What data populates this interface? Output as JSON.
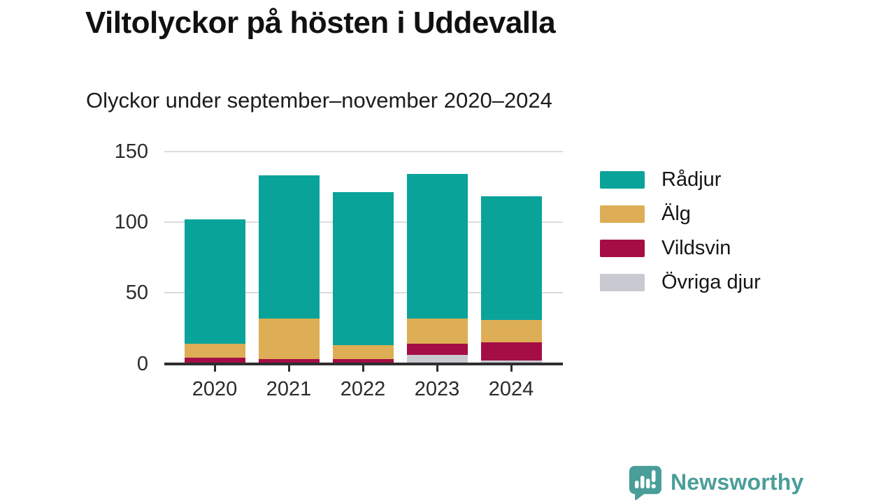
{
  "title": "Viltolyckor på hösten i Uddevalla",
  "subtitle": "Olyckor under september–november 2020–2024",
  "chart_data": {
    "type": "bar",
    "stacked": true,
    "title": "Viltolyckor på hösten i Uddevalla",
    "subtitle": "Olyckor under september–november 2020–2024",
    "categories": [
      "2020",
      "2021",
      "2022",
      "2023",
      "2024"
    ],
    "series": [
      {
        "name": "Rådjur",
        "color": "#09a39a",
        "values": [
          88,
          101,
          108,
          102,
          87
        ]
      },
      {
        "name": "Älg",
        "color": "#ddae55",
        "values": [
          10,
          29,
          10,
          18,
          16
        ]
      },
      {
        "name": "Vildsvin",
        "color": "#a50d45",
        "values": [
          4,
          3,
          3,
          8,
          13
        ]
      },
      {
        "name": "Övriga djur",
        "color": "#c9c9d2",
        "values": [
          0,
          0,
          0,
          6,
          2
        ]
      }
    ],
    "totals": [
      102,
      133,
      121,
      134,
      118
    ],
    "stack_order_bottom_to_top": [
      "Övriga djur",
      "Vildsvin",
      "Älg",
      "Rådjur"
    ],
    "xlabel": "",
    "ylabel": "",
    "ylim": [
      0,
      150
    ],
    "yticks": [
      0,
      50,
      100,
      150
    ],
    "grid": true,
    "legend_position": "right"
  },
  "colors": {
    "grid": "#dcdcdc",
    "axis": "#2e2e2e",
    "brand": "#4a9e99"
  },
  "footer": {
    "brand": "Newsworthy"
  }
}
